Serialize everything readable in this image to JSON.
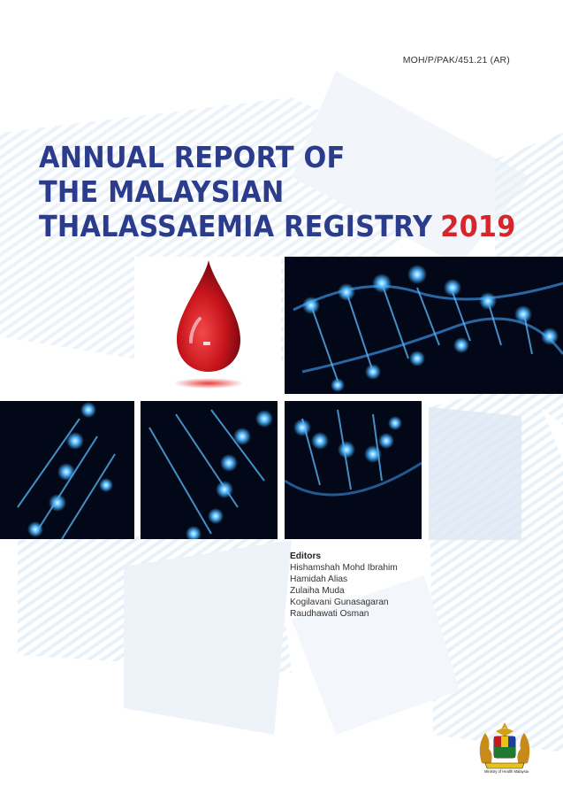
{
  "cover": {
    "code": "MOH/P/PAK/451.21 (AR)",
    "title_lines": [
      "ANNUAL REPORT OF",
      "THE MALAYSIAN",
      "THALASSAEMIA REGISTRY"
    ],
    "year": "2019",
    "colors": {
      "title": "#2b3c8c",
      "year": "#d7262b",
      "dna_glow": "#4fb6ff"
    }
  },
  "editors": {
    "heading": "Editors",
    "names": [
      "Hishamshah Mohd Ibrahim",
      "Hamidah Alias",
      "Zulaiha Muda",
      "Kogilavani Gunasagaran",
      "Raudhawati Osman"
    ]
  },
  "publisher": {
    "caption": "Ministry of Health Malaysia",
    "logo_icon": "malaysia-coat-of-arms-icon"
  },
  "images": [
    "blood-drop-icon",
    "dna-helix"
  ]
}
